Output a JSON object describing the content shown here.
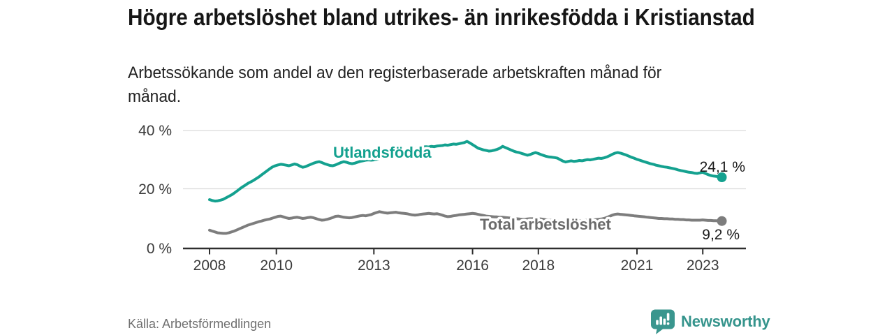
{
  "header": {
    "title": "Högre arbetslöshet bland utrikes- än inrikesfödda i Kristianstad",
    "subtitle": "Arbetssökande som andel av den registerbaserade arbetskraften månad för månad."
  },
  "footer": {
    "source": "Källa: Arbetsförmedlingen",
    "brand": "Newsworthy",
    "brand_icon": "newsworthy-speech-bubble-bar-chart-icon"
  },
  "colors": {
    "accent_teal": "#14a18f",
    "line_gray": "#7d7d7d",
    "label_gray": "#6b6b6b",
    "axis": "#2e2e2e",
    "grid": "#d9d9d9",
    "text": "#1a1a1a",
    "source_text": "#6f6f6f",
    "brand_teal": "#35948c",
    "background": "#ffffff"
  },
  "chart_data": {
    "type": "line",
    "title": "Högre arbetslöshet bland utrikes- än inrikesfödda i Kristianstad",
    "subtitle": "Arbetssökande som andel av den registerbaserade arbetskraften månad för månad.",
    "frequency": "monthly",
    "x_start": "2008-01",
    "x_end": "2023-08",
    "x_tick_labels": [
      "2008",
      "2010",
      "2013",
      "2016",
      "2018",
      "2021",
      "2023"
    ],
    "y_tick_labels": [
      "40 %",
      "20 %",
      "0 %"
    ],
    "y_tick_values": [
      40,
      20,
      0
    ],
    "ylim": [
      0,
      42
    ],
    "grid": "horizontal-only",
    "legend": "inline-labels-on-lines",
    "series": [
      {
        "name": "Utlandsfödda",
        "color": "#14a18f",
        "end_label": "24,1 %",
        "end_value": 24.1,
        "values": [
          16.5,
          16.2,
          16.0,
          16.1,
          16.3,
          16.6,
          17.1,
          17.6,
          18.1,
          18.7,
          19.4,
          20.1,
          20.8,
          21.4,
          22.0,
          22.5,
          23.0,
          23.6,
          24.2,
          24.9,
          25.6,
          26.3,
          27.0,
          27.6,
          28.0,
          28.3,
          28.5,
          28.4,
          28.2,
          28.0,
          28.3,
          28.6,
          28.4,
          27.9,
          27.5,
          27.7,
          28.1,
          28.5,
          28.9,
          29.2,
          29.4,
          29.1,
          28.7,
          28.4,
          28.1,
          28.0,
          28.3,
          28.7,
          29.1,
          29.4,
          29.2,
          28.9,
          28.7,
          28.9,
          29.2,
          29.5,
          29.7,
          29.9,
          30.0,
          29.9,
          30.0,
          30.2,
          30.4,
          30.7,
          31.0,
          31.3,
          31.6,
          31.4,
          31.2,
          31.5,
          31.9,
          32.3,
          32.7,
          33.1,
          33.5,
          33.8,
          34.0,
          34.2,
          34.4,
          34.5,
          34.4,
          34.6,
          34.5,
          34.7,
          34.8,
          34.9,
          35.1,
          35.0,
          35.2,
          35.4,
          35.3,
          35.5,
          35.7,
          35.9,
          36.3,
          35.8,
          35.2,
          34.6,
          34.0,
          33.7,
          33.4,
          33.2,
          33.0,
          33.1,
          33.3,
          33.6,
          34.0,
          34.6,
          34.2,
          33.8,
          33.4,
          33.0,
          32.7,
          32.5,
          32.2,
          31.9,
          31.6,
          31.8,
          32.2,
          32.5,
          32.2,
          31.8,
          31.5,
          31.2,
          31.0,
          30.9,
          30.8,
          30.6,
          30.1,
          29.6,
          29.3,
          29.5,
          29.7,
          29.5,
          29.6,
          29.8,
          29.7,
          29.9,
          30.1,
          30.0,
          30.2,
          30.4,
          30.6,
          30.5,
          30.7,
          31.0,
          31.4,
          31.9,
          32.3,
          32.5,
          32.3,
          32.0,
          31.7,
          31.3,
          30.9,
          30.6,
          30.2,
          29.9,
          29.6,
          29.3,
          29.0,
          28.7,
          28.5,
          28.2,
          28.0,
          27.8,
          27.6,
          27.5,
          27.3,
          27.1,
          26.9,
          26.6,
          26.4,
          26.2,
          26.0,
          25.8,
          25.7,
          25.5,
          25.4,
          25.6,
          25.8,
          25.4,
          25.0,
          24.7,
          24.5,
          24.4,
          24.2,
          24.1
        ]
      },
      {
        "name": "Total arbetslöshet",
        "color": "#7d7d7d",
        "end_label": "9,2 %",
        "end_value": 9.2,
        "values": [
          6.1,
          5.8,
          5.5,
          5.2,
          5.1,
          5.0,
          5.0,
          5.2,
          5.5,
          5.8,
          6.2,
          6.6,
          7.0,
          7.4,
          7.8,
          8.1,
          8.4,
          8.7,
          9.0,
          9.2,
          9.5,
          9.7,
          9.9,
          10.2,
          10.5,
          10.8,
          10.9,
          10.6,
          10.3,
          10.1,
          10.2,
          10.4,
          10.5,
          10.3,
          10.1,
          10.2,
          10.4,
          10.5,
          10.3,
          10.0,
          9.7,
          9.5,
          9.6,
          9.8,
          10.1,
          10.4,
          10.8,
          10.9,
          10.7,
          10.5,
          10.4,
          10.3,
          10.4,
          10.6,
          10.8,
          11.0,
          11.1,
          11.0,
          11.2,
          11.4,
          11.8,
          12.1,
          12.4,
          12.2,
          12.0,
          11.9,
          12.0,
          12.1,
          12.2,
          12.0,
          11.9,
          11.8,
          11.7,
          11.5,
          11.3,
          11.2,
          11.3,
          11.5,
          11.6,
          11.7,
          11.8,
          11.7,
          11.6,
          11.7,
          11.5,
          11.2,
          10.9,
          10.7,
          10.8,
          11.0,
          11.1,
          11.3,
          11.4,
          11.5,
          11.6,
          11.7,
          11.8,
          11.7,
          11.5,
          11.3,
          11.1,
          10.9,
          10.8,
          10.7,
          10.6,
          10.6,
          10.5,
          10.5,
          10.4,
          10.3,
          10.2,
          10.1,
          10.0,
          9.9,
          9.8,
          9.8,
          9.9,
          10.0,
          10.0,
          10.1,
          10.0,
          9.9,
          9.8,
          9.6,
          9.5,
          9.4,
          9.4,
          9.3,
          9.2,
          9.1,
          9.1,
          9.2,
          9.3,
          9.2,
          9.2,
          9.3,
          9.3,
          9.4,
          9.5,
          9.5,
          9.6,
          9.7,
          9.8,
          9.9,
          10.1,
          10.4,
          10.8,
          11.2,
          11.5,
          11.6,
          11.5,
          11.4,
          11.3,
          11.2,
          11.1,
          11.0,
          10.9,
          10.8,
          10.7,
          10.6,
          10.5,
          10.4,
          10.3,
          10.2,
          10.1,
          10.1,
          10.0,
          10.0,
          9.9,
          9.9,
          9.8,
          9.8,
          9.7,
          9.7,
          9.6,
          9.6,
          9.5,
          9.5,
          9.5,
          9.5,
          9.6,
          9.5,
          9.4,
          9.4,
          9.3,
          9.3,
          9.2,
          9.2
        ]
      }
    ]
  }
}
